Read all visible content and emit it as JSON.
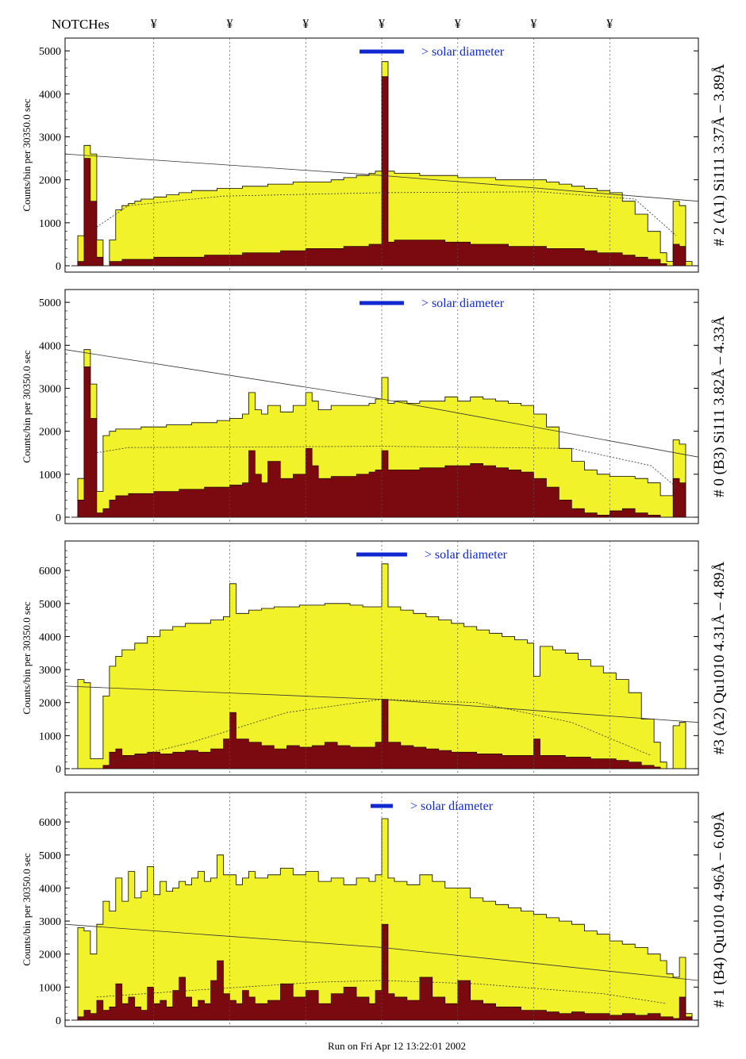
{
  "header": {
    "notches_label": "NOTCHes",
    "notch_symbol": "¥",
    "notch_positions": [
      -0.72,
      -0.48,
      -0.24,
      0.0,
      0.24,
      0.48,
      0.72
    ]
  },
  "footer": {
    "run_label": "Run on Fri Apr 12 13:22:01 2002"
  },
  "colors": {
    "fill_total": "#f2f22a",
    "fill_dark": "#7a0a10",
    "outline": "#000000",
    "solar_bar": "#1028d0",
    "blue_label": "#1028d0",
    "purple_label": "#6a1a6a"
  },
  "chart_data": [
    {
      "type": "area",
      "title": "# 2 (A1) Si111  3.37Å – 3.89Å",
      "ylabel": "Counts/bin per  30350.0 sec",
      "ylim": [
        0,
        5150
      ],
      "yticks": [
        0,
        1000,
        2000,
        3000,
        4000,
        5000
      ],
      "solar_label": "> solar diameter",
      "solar_bar": [
        -0.07,
        0.07
      ],
      "x": [
        -0.98,
        -0.96,
        -0.94,
        -0.92,
        -0.9,
        -0.88,
        -0.86,
        -0.84,
        -0.82,
        -0.8,
        -0.78,
        -0.76,
        -0.72,
        -0.68,
        -0.64,
        -0.6,
        -0.56,
        -0.52,
        -0.48,
        -0.44,
        -0.4,
        -0.36,
        -0.32,
        -0.28,
        -0.24,
        -0.2,
        -0.16,
        -0.12,
        -0.08,
        -0.04,
        -0.02,
        0.0,
        0.02,
        0.04,
        0.08,
        0.12,
        0.16,
        0.2,
        0.24,
        0.28,
        0.32,
        0.36,
        0.4,
        0.44,
        0.48,
        0.52,
        0.56,
        0.6,
        0.64,
        0.68,
        0.72,
        0.76,
        0.8,
        0.84,
        0.88,
        0.9,
        0.92,
        0.94,
        0.96,
        0.98
      ],
      "total": [
        0,
        700,
        2800,
        2600,
        600,
        0,
        600,
        1300,
        1400,
        1450,
        1500,
        1550,
        1600,
        1650,
        1700,
        1750,
        1750,
        1800,
        1800,
        1850,
        1850,
        1900,
        1900,
        1950,
        1950,
        1950,
        2000,
        2050,
        2100,
        2150,
        2200,
        4750,
        2200,
        2150,
        2150,
        2100,
        2100,
        2100,
        2050,
        2050,
        2050,
        2000,
        2000,
        2000,
        2000,
        1950,
        1900,
        1850,
        1800,
        1750,
        1700,
        1500,
        1200,
        800,
        300,
        100,
        1500,
        1400,
        100,
        0
      ],
      "dark": [
        0,
        100,
        2500,
        1500,
        200,
        0,
        100,
        100,
        150,
        150,
        150,
        150,
        200,
        200,
        200,
        200,
        250,
        250,
        250,
        300,
        300,
        300,
        350,
        350,
        400,
        400,
        400,
        450,
        450,
        500,
        500,
        4400,
        550,
        600,
        600,
        600,
        600,
        550,
        550,
        500,
        500,
        500,
        450,
        450,
        450,
        400,
        400,
        400,
        350,
        300,
        300,
        250,
        200,
        150,
        50,
        0,
        500,
        450,
        0,
        0
      ],
      "ref_line": [
        [
          -1.0,
          2600
        ],
        [
          0.0,
          2100
        ],
        [
          1.0,
          1500
        ]
      ],
      "smooth": [
        [
          -0.9,
          900
        ],
        [
          -0.8,
          1400
        ],
        [
          -0.5,
          1620
        ],
        [
          0.0,
          1700
        ],
        [
          0.5,
          1720
        ],
        [
          0.8,
          1550
        ],
        [
          0.93,
          700
        ]
      ]
    },
    {
      "type": "area",
      "title": "# 0 (B3) Si111  3.82Å – 4.33Å",
      "ylabel": "Counts/bin per  30350.0 sec",
      "ylim": [
        0,
        5150
      ],
      "yticks": [
        0,
        1000,
        2000,
        3000,
        4000,
        5000
      ],
      "solar_label": "> solar diameter",
      "solar_bar": [
        -0.07,
        0.07
      ],
      "x": [
        -0.98,
        -0.96,
        -0.94,
        -0.92,
        -0.9,
        -0.88,
        -0.86,
        -0.84,
        -0.82,
        -0.8,
        -0.76,
        -0.72,
        -0.68,
        -0.64,
        -0.6,
        -0.56,
        -0.52,
        -0.48,
        -0.44,
        -0.42,
        -0.4,
        -0.38,
        -0.36,
        -0.32,
        -0.28,
        -0.24,
        -0.22,
        -0.2,
        -0.16,
        -0.12,
        -0.08,
        -0.04,
        -0.02,
        0.0,
        0.02,
        0.04,
        0.08,
        0.12,
        0.16,
        0.2,
        0.24,
        0.28,
        0.32,
        0.36,
        0.4,
        0.44,
        0.48,
        0.52,
        0.56,
        0.6,
        0.64,
        0.68,
        0.72,
        0.76,
        0.8,
        0.84,
        0.88,
        0.92,
        0.94,
        0.96,
        0.98
      ],
      "total": [
        0,
        900,
        3900,
        3100,
        600,
        1900,
        2000,
        2050,
        2050,
        2050,
        2100,
        2100,
        2150,
        2150,
        2200,
        2200,
        2250,
        2300,
        2400,
        2900,
        2500,
        2400,
        2600,
        2450,
        2600,
        2900,
        2700,
        2500,
        2600,
        2600,
        2600,
        2650,
        2750,
        3250,
        2650,
        2700,
        2650,
        2700,
        2700,
        2800,
        2700,
        2800,
        2750,
        2700,
        2650,
        2600,
        2400,
        2100,
        1600,
        1300,
        1100,
        1000,
        950,
        950,
        900,
        800,
        500,
        1800,
        1700,
        0,
        0
      ],
      "dark": [
        0,
        400,
        3500,
        2300,
        100,
        200,
        400,
        500,
        500,
        550,
        550,
        600,
        600,
        650,
        650,
        700,
        700,
        750,
        800,
        1550,
        1000,
        800,
        1300,
        900,
        1000,
        1600,
        1200,
        900,
        950,
        950,
        1000,
        1050,
        1100,
        1550,
        1100,
        1100,
        1100,
        1150,
        1150,
        1200,
        1200,
        1250,
        1200,
        1150,
        1100,
        1050,
        900,
        700,
        400,
        200,
        100,
        50,
        150,
        200,
        100,
        50,
        0,
        900,
        800,
        0,
        0
      ],
      "ref_line": [
        [
          -1.0,
          3900
        ],
        [
          0.0,
          2750
        ],
        [
          1.0,
          1400
        ]
      ],
      "smooth": [
        [
          -0.9,
          1500
        ],
        [
          -0.8,
          1620
        ],
        [
          0.0,
          1650
        ],
        [
          0.6,
          1600
        ],
        [
          0.85,
          1200
        ],
        [
          0.93,
          700
        ]
      ]
    },
    {
      "type": "area",
      "title": "#3 (A2) Qu1010  4.31Å – 4.89Å",
      "ylabel": "Counts/bin per  30350.0 sec",
      "ylim": [
        0,
        6700
      ],
      "yticks": [
        0,
        1000,
        2000,
        3000,
        4000,
        5000,
        6000
      ],
      "solar_label": "> solar diameter",
      "solar_bar": [
        -0.08,
        0.08
      ],
      "x": [
        -0.98,
        -0.96,
        -0.94,
        -0.92,
        -0.9,
        -0.88,
        -0.86,
        -0.84,
        -0.82,
        -0.78,
        -0.74,
        -0.7,
        -0.66,
        -0.62,
        -0.58,
        -0.54,
        -0.5,
        -0.48,
        -0.46,
        -0.42,
        -0.38,
        -0.34,
        -0.3,
        -0.26,
        -0.22,
        -0.18,
        -0.14,
        -0.1,
        -0.06,
        -0.02,
        0.0,
        0.02,
        0.06,
        0.1,
        0.14,
        0.18,
        0.22,
        0.26,
        0.3,
        0.34,
        0.38,
        0.42,
        0.46,
        0.48,
        0.5,
        0.54,
        0.58,
        0.62,
        0.66,
        0.7,
        0.74,
        0.78,
        0.82,
        0.86,
        0.88,
        0.9,
        0.92,
        0.94,
        0.96,
        0.98
      ],
      "total": [
        0,
        2700,
        2600,
        300,
        300,
        2200,
        3100,
        3400,
        3600,
        3800,
        4000,
        4200,
        4300,
        4400,
        4400,
        4500,
        4600,
        5600,
        4700,
        4800,
        4850,
        4900,
        4900,
        4950,
        4950,
        5000,
        5000,
        4950,
        4900,
        4900,
        6200,
        4900,
        4800,
        4700,
        4600,
        4500,
        4400,
        4300,
        4200,
        4100,
        4000,
        3900,
        3800,
        2800,
        3700,
        3600,
        3500,
        3300,
        3100,
        2900,
        2700,
        2300,
        1500,
        800,
        200,
        0,
        1300,
        1400,
        0,
        0
      ],
      "dark": [
        0,
        0,
        0,
        0,
        0,
        100,
        500,
        600,
        400,
        450,
        500,
        450,
        500,
        550,
        500,
        600,
        900,
        1700,
        900,
        800,
        700,
        600,
        700,
        650,
        700,
        800,
        700,
        650,
        650,
        800,
        2100,
        800,
        700,
        650,
        600,
        550,
        500,
        500,
        450,
        450,
        400,
        400,
        400,
        900,
        400,
        400,
        350,
        350,
        300,
        300,
        250,
        200,
        100,
        50,
        0,
        0,
        0,
        0,
        0,
        0
      ],
      "ref_line": [
        [
          -1.0,
          2500
        ],
        [
          0.0,
          2100
        ],
        [
          1.0,
          1400
        ]
      ],
      "smooth": [
        [
          -0.85,
          200
        ],
        [
          -0.6,
          800
        ],
        [
          -0.3,
          1700
        ],
        [
          0.0,
          2100
        ],
        [
          0.3,
          2000
        ],
        [
          0.6,
          1400
        ],
        [
          0.85,
          400
        ]
      ]
    },
    {
      "type": "area",
      "title": "# 1 (B4) Qu1010 4.96Å – 6.09Å",
      "ylabel": "Counts/bin per  30350.0 sec",
      "ylim": [
        0,
        6700
      ],
      "yticks": [
        0,
        1000,
        2000,
        3000,
        4000,
        5000,
        6000
      ],
      "solar_label": "> solar diameter",
      "solar_bar": [
        -0.035,
        0.035
      ],
      "x": [
        -0.98,
        -0.96,
        -0.94,
        -0.92,
        -0.9,
        -0.88,
        -0.86,
        -0.84,
        -0.82,
        -0.8,
        -0.78,
        -0.76,
        -0.74,
        -0.72,
        -0.7,
        -0.68,
        -0.66,
        -0.64,
        -0.62,
        -0.6,
        -0.58,
        -0.56,
        -0.54,
        -0.52,
        -0.5,
        -0.48,
        -0.46,
        -0.44,
        -0.42,
        -0.4,
        -0.36,
        -0.32,
        -0.28,
        -0.24,
        -0.2,
        -0.16,
        -0.12,
        -0.08,
        -0.04,
        -0.02,
        0.0,
        0.02,
        0.04,
        0.08,
        0.12,
        0.16,
        0.2,
        0.24,
        0.28,
        0.32,
        0.36,
        0.4,
        0.44,
        0.48,
        0.52,
        0.56,
        0.6,
        0.64,
        0.68,
        0.72,
        0.76,
        0.8,
        0.84,
        0.88,
        0.9,
        0.92,
        0.94,
        0.96,
        0.98
      ],
      "total": [
        0,
        2800,
        2700,
        2000,
        2900,
        3600,
        3300,
        4300,
        3600,
        4500,
        3700,
        3900,
        4650,
        3800,
        4200,
        3900,
        4000,
        4200,
        4100,
        4300,
        4500,
        4200,
        4300,
        5000,
        4400,
        4400,
        4100,
        4300,
        4500,
        4300,
        4400,
        4600,
        4400,
        4500,
        4200,
        4300,
        4100,
        4300,
        4200,
        4400,
        6100,
        4300,
        4200,
        4100,
        4400,
        4200,
        4000,
        4000,
        3700,
        3600,
        3500,
        3400,
        3300,
        3200,
        3100,
        3000,
        2900,
        2700,
        2600,
        2400,
        2300,
        2200,
        2000,
        1800,
        1400,
        1300,
        1900,
        200,
        0
      ],
      "dark": [
        0,
        100,
        300,
        200,
        600,
        300,
        400,
        1100,
        500,
        700,
        400,
        300,
        1000,
        500,
        600,
        400,
        900,
        1300,
        700,
        400,
        600,
        500,
        1200,
        1800,
        800,
        600,
        500,
        900,
        700,
        500,
        600,
        1100,
        700,
        900,
        500,
        800,
        1000,
        700,
        500,
        900,
        2900,
        800,
        700,
        600,
        1300,
        700,
        500,
        1200,
        600,
        500,
        400,
        400,
        300,
        300,
        250,
        200,
        250,
        200,
        200,
        150,
        200,
        150,
        200,
        100,
        100,
        50,
        700,
        100,
        0
      ],
      "ref_line": [
        [
          -1.0,
          2900
        ],
        [
          0.0,
          2200
        ],
        [
          1.0,
          1200
        ]
      ],
      "smooth": [
        [
          -0.9,
          700
        ],
        [
          -0.6,
          900
        ],
        [
          -0.2,
          1150
        ],
        [
          0.0,
          1200
        ],
        [
          0.3,
          1100
        ],
        [
          0.7,
          800
        ],
        [
          0.9,
          500
        ]
      ]
    }
  ]
}
